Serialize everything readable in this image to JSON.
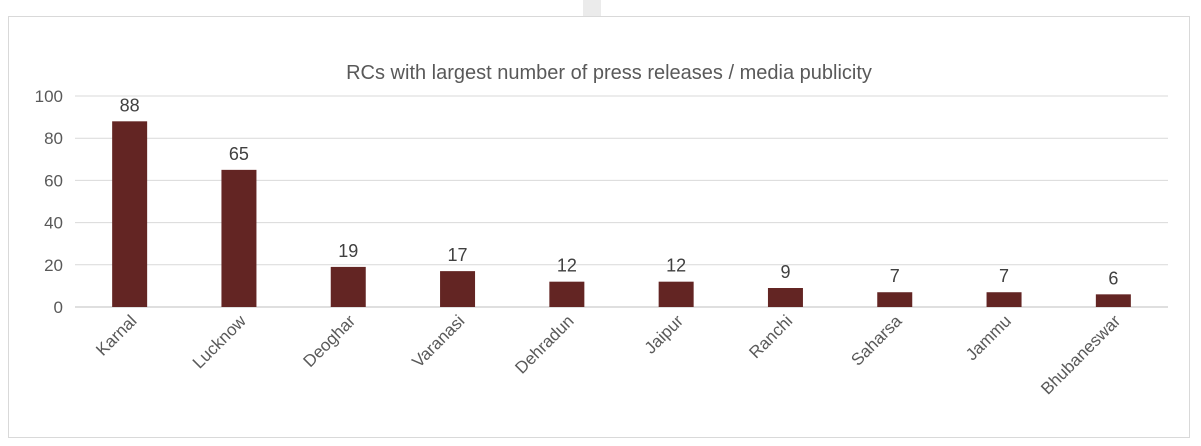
{
  "chart_data": {
    "type": "bar",
    "title": "RCs with largest number of press releases / media publicity",
    "categories": [
      "Karnal",
      "Lucknow",
      "Deoghar",
      "Varanasi",
      "Dehradun",
      "Jaipur",
      "Ranchi",
      "Saharsa",
      "Jammu",
      "Bhubaneswar"
    ],
    "values": [
      88,
      65,
      19,
      17,
      12,
      12,
      9,
      7,
      7,
      6
    ],
    "xlabel": "",
    "ylabel": "",
    "ylim": [
      0,
      100
    ],
    "yticks": [
      0,
      20,
      40,
      60,
      80,
      100
    ],
    "grid": true,
    "legend": "none",
    "bar_color": "#632523",
    "data_labels": true
  }
}
